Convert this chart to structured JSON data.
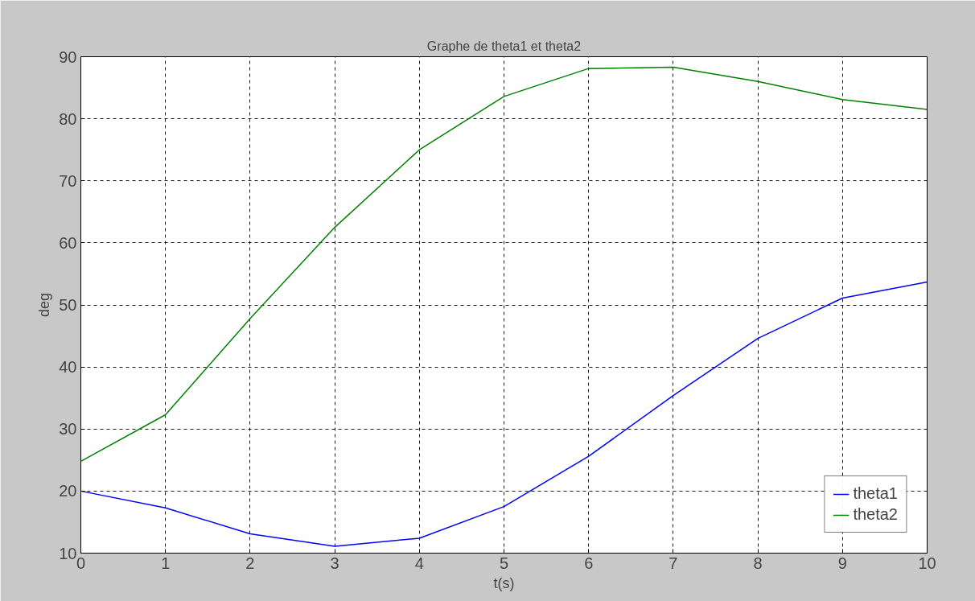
{
  "chart_data": {
    "type": "line",
    "title": "Graphe de theta1 et theta2",
    "xlabel": "t(s)",
    "ylabel": "deg",
    "x": [
      0,
      1,
      2,
      3,
      4,
      5,
      6,
      7,
      8,
      9,
      10
    ],
    "series": [
      {
        "name": "theta1",
        "color": "#0000ff",
        "values": [
          20.0,
          17.3,
          13.1,
          11.1,
          12.4,
          17.5,
          25.6,
          35.4,
          44.6,
          51.1,
          53.7
        ]
      },
      {
        "name": "theta2",
        "color": "#008000",
        "values": [
          24.8,
          32.3,
          47.8,
          62.5,
          75.0,
          83.6,
          88.1,
          88.3,
          86.0,
          83.1,
          81.5
        ]
      }
    ],
    "xlim": [
      0,
      10
    ],
    "ylim": [
      10,
      90
    ],
    "xticks": [
      0,
      1,
      2,
      3,
      4,
      5,
      6,
      7,
      8,
      9,
      10
    ],
    "yticks": [
      10,
      20,
      30,
      40,
      50,
      60,
      70,
      80,
      90
    ],
    "grid": true,
    "legend": "bottom right",
    "line_style": "solid",
    "marker": "none"
  }
}
